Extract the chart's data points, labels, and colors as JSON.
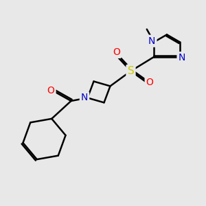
{
  "bg_color": "#e8e8e8",
  "bond_color": "#000000",
  "bond_width": 1.8,
  "atom_colors": {
    "N": "#0000cc",
    "O": "#ff0000",
    "S": "#cccc00",
    "C": "#000000"
  },
  "font_size_atom": 10
}
